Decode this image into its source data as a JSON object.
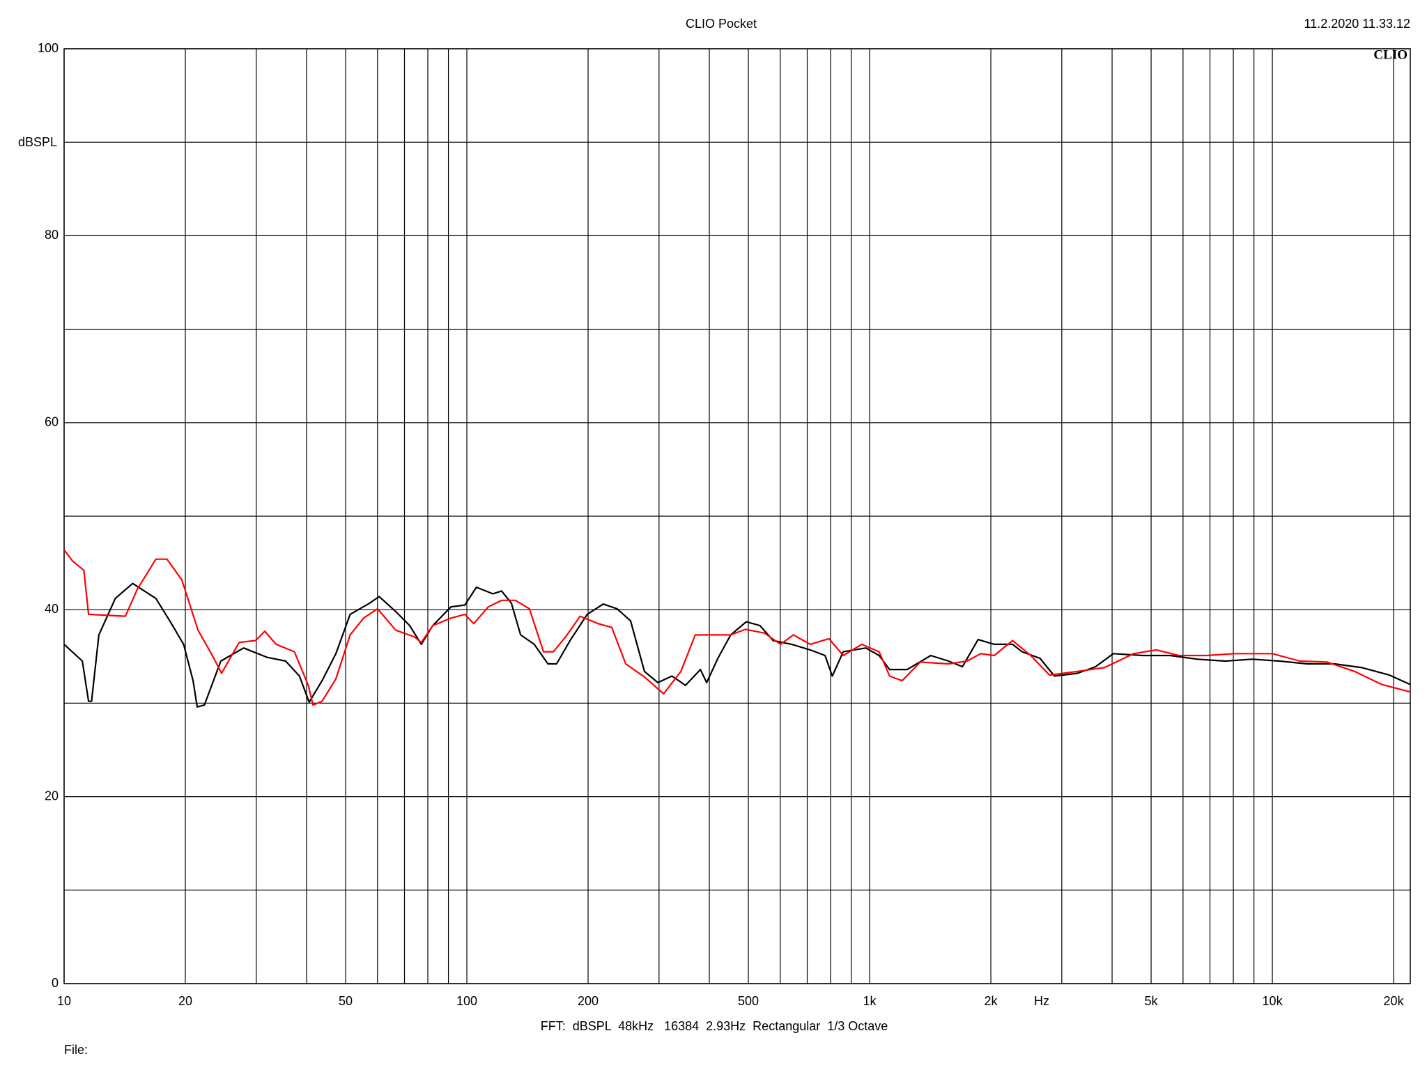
{
  "chart_data": {
    "type": "line",
    "title": "CLIO Pocket",
    "timestamp": "11.2.2020 11.33.12",
    "logo": "CLIO",
    "y_label": "dBSPL",
    "x_label": "Hz",
    "footer": "FFT:  dBSPL  48kHz   16384  2.93Hz  Rectangular  1/3 Octave",
    "file_label": "File:",
    "xscale": "log",
    "xlim": [
      10,
      22000
    ],
    "ylim": [
      0,
      100
    ],
    "grid": true,
    "xticks": [
      10,
      20,
      50,
      100,
      200,
      500,
      {
        "value": 1000,
        "label": "1k"
      },
      {
        "value": 2000,
        "label": "2k"
      },
      {
        "value": 5000,
        "label": "5k"
      },
      {
        "value": 10000,
        "label": "10k"
      },
      {
        "value": 20000,
        "label": "20k"
      }
    ],
    "xminor": [
      30,
      40,
      60,
      70,
      80,
      90,
      300,
      400,
      600,
      700,
      800,
      900,
      3000,
      4000,
      6000,
      7000,
      8000,
      9000
    ],
    "yticks": [
      0,
      20,
      40,
      60,
      80,
      100
    ],
    "yminor": [
      10,
      30,
      50,
      70,
      90
    ],
    "series": [
      {
        "color": "#000000",
        "x": [
          10,
          11.1,
          11.5,
          11.7,
          12.2,
          13.4,
          14.8,
          16.9,
          18.3,
          19.8,
          20.9,
          21.4,
          22.3,
          24.5,
          27.9,
          31.9,
          35.5,
          38.4,
          40.6,
          43.7,
          47.3,
          51.3,
          56.9,
          60.6,
          66.6,
          72.1,
          77.1,
          82.3,
          91.3,
          98.9,
          105.6,
          116,
          122,
          129,
          136,
          147,
          159,
          167,
          181,
          199,
          218,
          236,
          255,
          276,
          298,
          323,
          349,
          380,
          394,
          420,
          452,
          494,
          534,
          576,
          640,
          712,
          775,
          808,
          860,
          979,
          1056,
          1121,
          1240,
          1419,
          1570,
          1700,
          1859,
          2038,
          2264,
          2390,
          2649,
          2877,
          3282,
          3638,
          4030,
          4769,
          5575,
          6521,
          7634,
          8922,
          10430,
          12200,
          14270,
          16690,
          19530,
          22000
        ],
        "values": [
          36.3,
          34.5,
          30.2,
          30.2,
          37.3,
          41.2,
          42.8,
          41.2,
          38.8,
          36.3,
          32.4,
          29.6,
          29.8,
          34.5,
          35.9,
          34.9,
          34.5,
          32.9,
          30.1,
          32.4,
          35.3,
          39.5,
          40.6,
          41.4,
          39.8,
          38.3,
          36.3,
          38.3,
          40.3,
          40.5,
          42.4,
          41.7,
          42.0,
          40.7,
          37.3,
          36.3,
          34.2,
          34.2,
          36.8,
          39.5,
          40.6,
          40.1,
          38.8,
          33.4,
          32.2,
          32.9,
          31.9,
          33.6,
          32.2,
          34.8,
          37.3,
          38.7,
          38.3,
          36.7,
          36.3,
          35.7,
          35.1,
          32.9,
          35.5,
          35.9,
          35.1,
          33.6,
          33.6,
          35.1,
          34.5,
          33.9,
          36.8,
          36.3,
          36.3,
          35.5,
          34.8,
          32.9,
          33.2,
          33.9,
          35.3,
          35.1,
          35.1,
          34.7,
          34.5,
          34.7,
          34.5,
          34.2,
          34.2,
          33.8,
          33.0,
          32.0
        ]
      },
      {
        "color": "#ff0000",
        "x": [
          10,
          10.5,
          11.2,
          11.5,
          14.2,
          15.2,
          16.9,
          18.0,
          19.6,
          21.5,
          23.2,
          24.6,
          27.2,
          29.9,
          31.5,
          33.6,
          37.3,
          40.4,
          41.5,
          43.7,
          47.3,
          51.3,
          55.4,
          60,
          66.6,
          74,
          77.1,
          82.3,
          91.3,
          98.9,
          104,
          113,
          122,
          132,
          143,
          155,
          164,
          176,
          191,
          212,
          229,
          248,
          276,
          308,
          340,
          369,
          410,
          452,
          492,
          548,
          601,
          647,
          712,
          793,
          860,
          956,
          1056,
          1121,
          1204,
          1336,
          1570,
          1745,
          1888,
          2038,
          2264,
          2512,
          2796,
          3282,
          3828,
          4527,
          5155,
          5853,
          6874,
          8040,
          10000,
          11690,
          13670,
          15990,
          18700,
          22000
        ],
        "values": [
          46.4,
          45.2,
          44.2,
          39.5,
          39.3,
          42.2,
          45.4,
          45.4,
          43.2,
          37.8,
          35.3,
          33.2,
          36.5,
          36.7,
          37.7,
          36.3,
          35.5,
          31.9,
          29.8,
          30.2,
          32.6,
          37.3,
          39.1,
          40.1,
          37.8,
          37.1,
          36.5,
          38.3,
          39.1,
          39.5,
          38.5,
          40.3,
          41.0,
          41.0,
          40.1,
          35.5,
          35.5,
          37.1,
          39.3,
          38.5,
          38.1,
          34.2,
          32.8,
          31.0,
          33.4,
          37.3,
          37.3,
          37.3,
          37.9,
          37.5,
          36.3,
          37.3,
          36.3,
          36.9,
          35.1,
          36.3,
          35.5,
          32.9,
          32.4,
          34.4,
          34.2,
          34.5,
          35.3,
          35.1,
          36.7,
          35.1,
          33.0,
          33.4,
          33.8,
          35.3,
          35.7,
          35.1,
          35.1,
          35.3,
          35.3,
          34.5,
          34.4,
          33.4,
          32.0,
          31.2
        ]
      }
    ]
  }
}
